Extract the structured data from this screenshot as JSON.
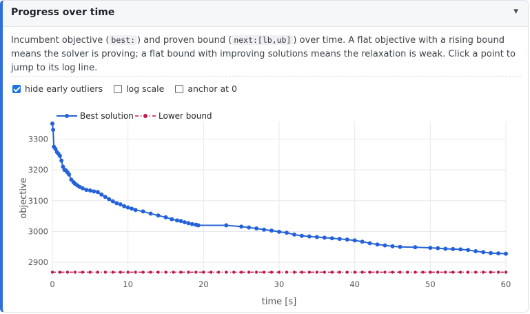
{
  "panel": {
    "title": "Progress over time",
    "description_parts": [
      "Incumbent objective (",
      "best:",
      ") and proven bound (",
      "next:[lb,ub]",
      ") over time. A flat objective with a rising bound means the solver is proving; a flat bound with improving solutions means the relaxation is weak. Click a point to jump to its log line."
    ]
  },
  "options": [
    {
      "label": "hide early outliers",
      "checked": true
    },
    {
      "label": "log scale",
      "checked": false
    },
    {
      "label": "anchor at 0",
      "checked": false
    }
  ],
  "colors": {
    "accent": "#2f6fdb",
    "best": "#2462d9",
    "bound": "#c0174a"
  },
  "chart_data": {
    "type": "line",
    "xlabel": "time [s]",
    "ylabel": "objective",
    "xlim": [
      0,
      60
    ],
    "ylim": [
      2860,
      3357
    ],
    "xticks": [
      0,
      10,
      20,
      30,
      40,
      50,
      60
    ],
    "yticks": [
      2900,
      3000,
      3100,
      3200,
      3300
    ],
    "grid": true,
    "legend_placement": "top-left",
    "series": [
      {
        "name": "Best solution",
        "style": "solid",
        "x": [
          0.0,
          0.1,
          0.2,
          0.4,
          0.6,
          0.8,
          1.0,
          1.2,
          1.4,
          1.6,
          1.8,
          2.0,
          2.2,
          2.5,
          2.8,
          3.0,
          3.3,
          3.6,
          4.0,
          4.5,
          5.0,
          5.5,
          6.0,
          6.5,
          7.0,
          7.5,
          8.0,
          8.5,
          9.0,
          9.5,
          10.0,
          10.5,
          11.0,
          12.0,
          13.0,
          14.0,
          15.0,
          15.8,
          16.5,
          17.0,
          17.5,
          18.0,
          18.5,
          19.0,
          19.3,
          23.0,
          25.0,
          26.0,
          27.0,
          28.0,
          29.0,
          30.0,
          31.0,
          32.0,
          33.0,
          34.0,
          35.0,
          36.0,
          37.0,
          38.0,
          39.0,
          40.0,
          41.0,
          42.0,
          43.0,
          44.0,
          45.0,
          46.0,
          48.0,
          50.0,
          51.0,
          52.0,
          53.0,
          54.0,
          55.0,
          56.0,
          57.0,
          58.0,
          59.0,
          60.0
        ],
        "y": [
          3350,
          3330,
          3275,
          3268,
          3258,
          3252,
          3245,
          3230,
          3210,
          3200,
          3198,
          3192,
          3185,
          3168,
          3160,
          3155,
          3150,
          3145,
          3140,
          3135,
          3133,
          3130,
          3128,
          3120,
          3112,
          3105,
          3098,
          3092,
          3088,
          3082,
          3078,
          3074,
          3070,
          3065,
          3058,
          3052,
          3046,
          3040,
          3036,
          3034,
          3030,
          3027,
          3024,
          3022,
          3020,
          3020,
          3016,
          3013,
          3010,
          3006,
          3003,
          2999,
          2996,
          2990,
          2986,
          2984,
          2982,
          2980,
          2978,
          2976,
          2974,
          2971,
          2967,
          2962,
          2958,
          2955,
          2952,
          2950,
          2949,
          2947,
          2946,
          2944,
          2943,
          2942,
          2940,
          2936,
          2933,
          2930,
          2929,
          2928
        ]
      },
      {
        "name": "Lower bound",
        "style": "dashdot",
        "x": [
          0,
          1,
          2,
          3,
          4,
          5,
          6,
          7,
          8,
          9,
          10,
          11,
          12,
          13,
          14,
          15,
          16,
          17,
          18,
          19,
          20,
          21,
          22,
          23,
          24,
          25,
          26,
          27,
          28,
          29,
          30,
          31,
          32,
          33,
          34,
          35,
          36,
          37,
          38,
          39,
          40,
          41,
          42,
          43,
          44,
          45,
          46,
          47,
          48,
          49,
          50,
          51,
          52,
          53,
          54,
          55,
          56,
          57,
          58,
          59,
          60
        ],
        "y": [
          2868,
          2868,
          2868,
          2868,
          2868,
          2868,
          2868,
          2868,
          2868,
          2868,
          2868,
          2868,
          2868,
          2868,
          2868,
          2868,
          2868,
          2868,
          2868,
          2868,
          2868,
          2868,
          2868,
          2868,
          2868,
          2868,
          2868,
          2868,
          2868,
          2868,
          2868,
          2868,
          2868,
          2868,
          2868,
          2868,
          2868,
          2868,
          2868,
          2868,
          2868,
          2868,
          2868,
          2868,
          2868,
          2868,
          2868,
          2868,
          2868,
          2868,
          2868,
          2868,
          2868,
          2868,
          2868,
          2868,
          2868,
          2868,
          2868,
          2868,
          2868
        ]
      }
    ]
  }
}
